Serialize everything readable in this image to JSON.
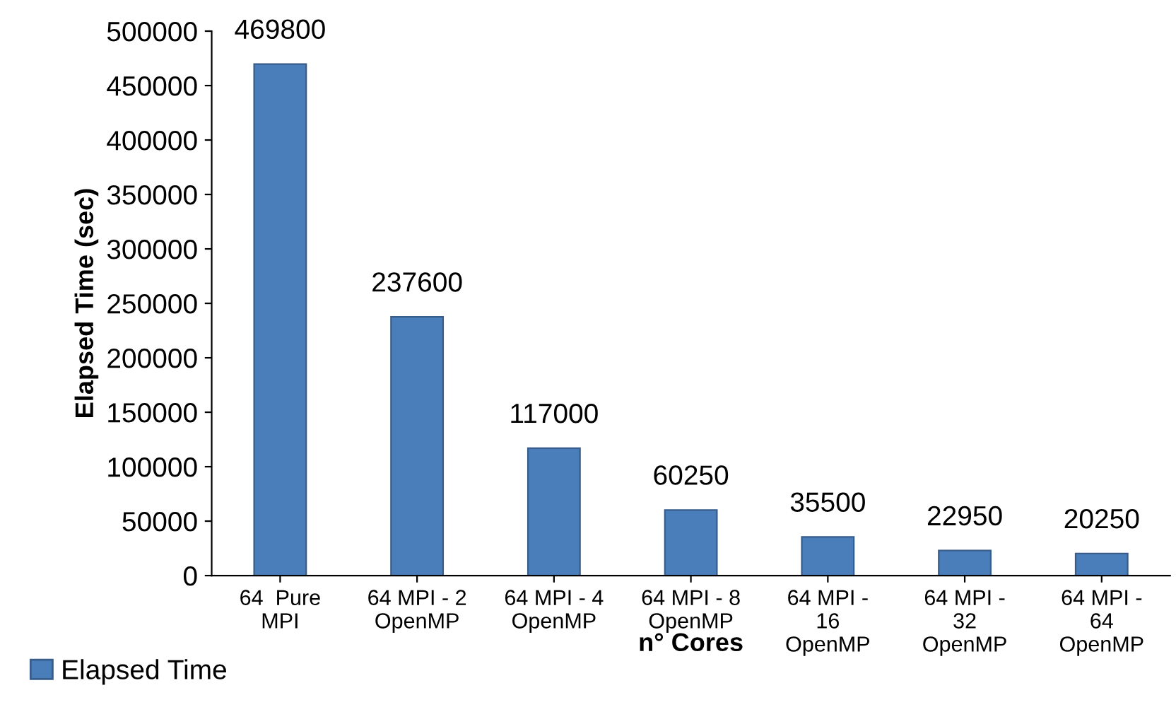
{
  "chart_data": {
    "type": "bar",
    "xlabel": "n° Cores",
    "ylabel": "Elapsed Time (sec)",
    "categories": [
      "64  Pure\nMPI",
      "64 MPI - 2\nOpenMP",
      "64 MPI - 4\nOpenMP",
      "64 MPI - 8\nOpenMP",
      "64 MPI -\n16\nOpenMP",
      "64 MPI -\n32\nOpenMP",
      "64 MPI -\n64\nOpenMP"
    ],
    "series": [
      {
        "name": "Elapsed Time",
        "color": "#4a7ebb",
        "values": [
          469800,
          237600,
          117000,
          60250,
          35500,
          22950,
          20250
        ]
      }
    ],
    "ylim": [
      0,
      500000
    ],
    "yticks": [
      0,
      50000,
      100000,
      150000,
      200000,
      250000,
      300000,
      350000,
      400000,
      450000,
      500000
    ],
    "data_labels": true,
    "grid": false,
    "legend": "bottom left"
  }
}
